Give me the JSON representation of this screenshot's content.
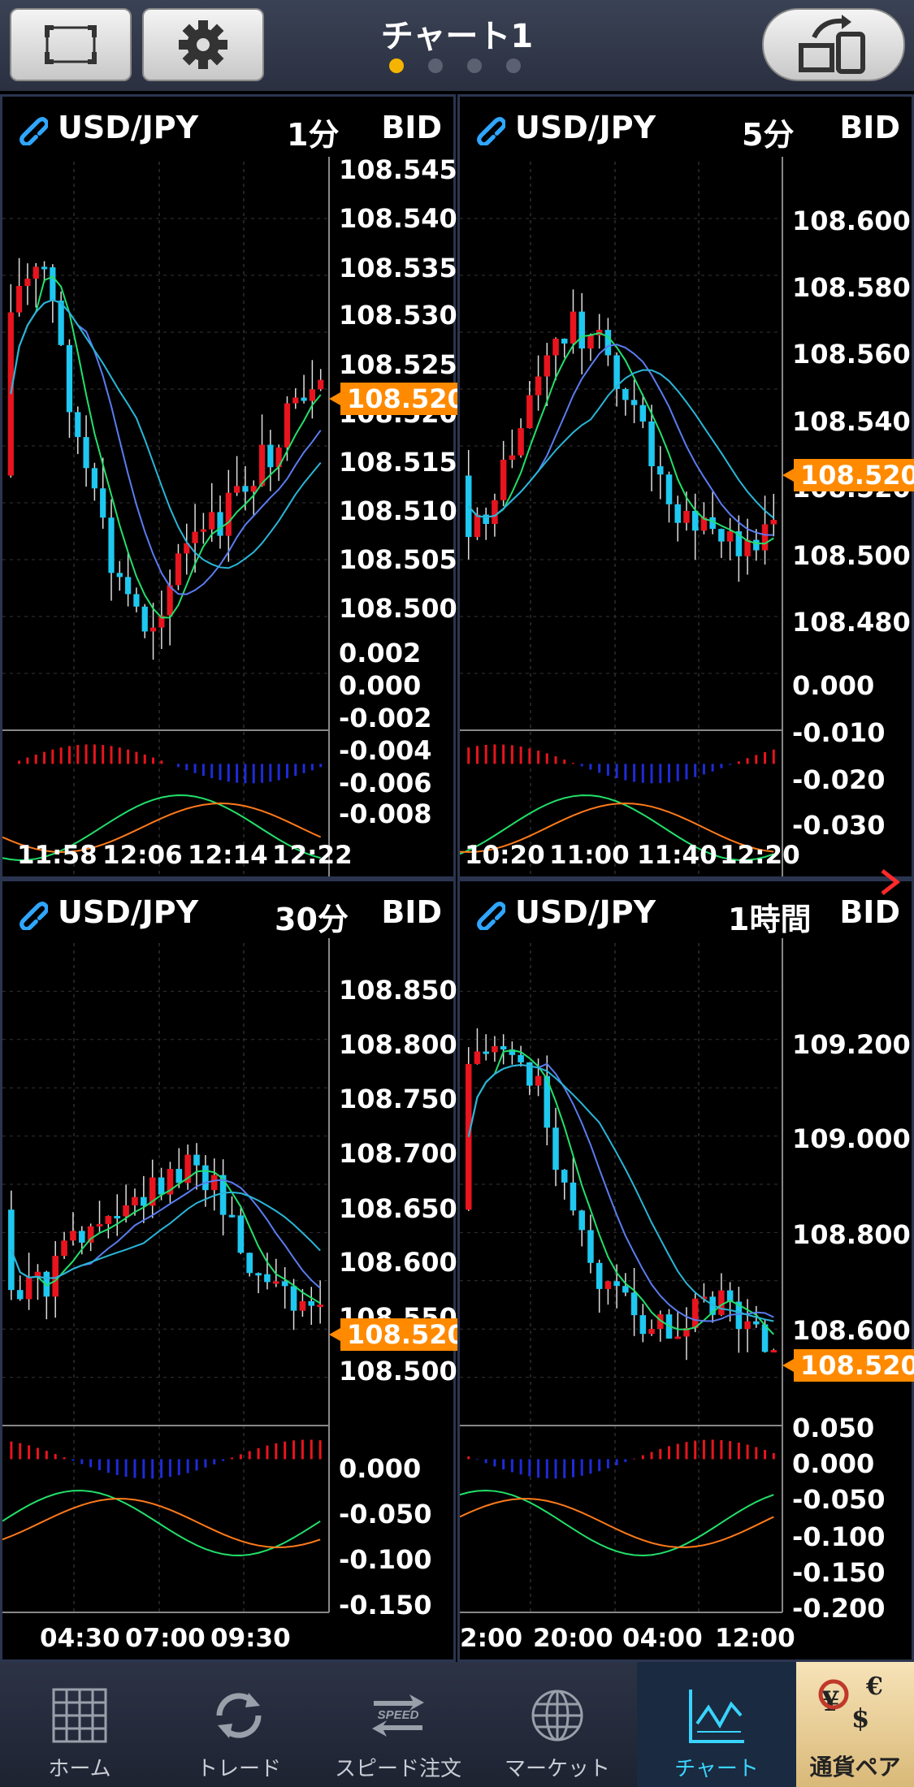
{
  "header": {
    "title": "チャート1",
    "page_count": 4,
    "active_page": 0
  },
  "panels": [
    {
      "symbol": "USD/JPY",
      "timeframe": "1分",
      "side": "BID",
      "price_axis": [
        "108.545",
        "108.540",
        "108.535",
        "108.530",
        "108.525",
        "108.520",
        "108.515",
        "108.510",
        "108.505",
        "108.500"
      ],
      "current_price": "108.520",
      "osc_axis": [
        "0.002",
        "0.000",
        "-0.002",
        "-0.004",
        "-0.006",
        "-0.008"
      ],
      "time_axis": [
        "11:58",
        "12:06",
        "12:14",
        "12:22"
      ]
    },
    {
      "symbol": "USD/JPY",
      "timeframe": "5分",
      "side": "BID",
      "price_axis": [
        "108.600",
        "108.580",
        "108.560",
        "108.540",
        "108.520",
        "108.500",
        "108.480"
      ],
      "current_price": "108.520",
      "osc_axis": [
        "0.000",
        "-0.010",
        "-0.020",
        "-0.030"
      ],
      "time_axis": [
        "10:20",
        "11:00",
        "11:40",
        "12:20"
      ]
    },
    {
      "symbol": "USD/JPY",
      "timeframe": "30分",
      "side": "BID",
      "price_axis": [
        "108.850",
        "108.800",
        "108.750",
        "108.700",
        "108.650",
        "108.600",
        "108.550",
        "108.500"
      ],
      "current_price": "108.520",
      "osc_axis": [
        "0.000",
        "-0.050",
        "-0.100",
        "-0.150"
      ],
      "time_axis": [
        "04:30",
        "07:00",
        "09:30"
      ]
    },
    {
      "symbol": "USD/JPY",
      "timeframe": "1時間",
      "side": "BID",
      "price_axis": [
        "109.200",
        "109.000",
        "108.800",
        "108.600"
      ],
      "current_price": "108.520",
      "osc_axis": [
        "0.050",
        "0.000",
        "-0.050",
        "-0.100",
        "-0.150",
        "-0.200"
      ],
      "time_axis": [
        "2:00",
        "20:00",
        "04:00",
        "12:00"
      ]
    }
  ],
  "nav": [
    {
      "label": "ホーム",
      "icon": "grid-icon"
    },
    {
      "label": "トレード",
      "icon": "refresh-icon"
    },
    {
      "label": "スピード注文",
      "icon": "speed-icon"
    },
    {
      "label": "マーケット",
      "icon": "globe-icon"
    },
    {
      "label": "チャート",
      "icon": "chart-icon",
      "active": true
    },
    {
      "label": "通貨ペア",
      "icon": "currency-icon"
    }
  ],
  "nav_icon_text": {
    "speed": "SPEED"
  },
  "colors": {
    "up": "#e8141e",
    "down": "#1ec8f0",
    "accent": "#ff8a00",
    "ma_fast": "#22e06a",
    "ma_mid": "#5a7cf0",
    "ma_slow": "#29b6d8",
    "signal": "#ff7a1a"
  }
}
